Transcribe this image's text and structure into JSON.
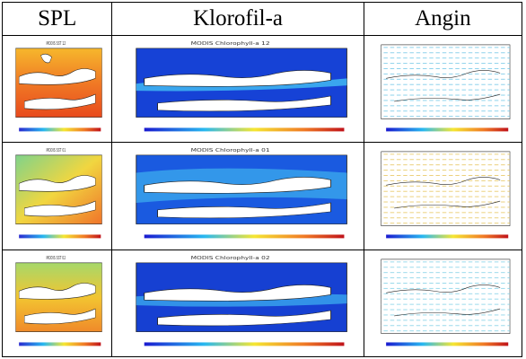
{
  "table": {
    "columns": [
      "SPL",
      "Klorofil-a",
      "Angin"
    ],
    "rows": [
      {
        "spl_title": "MODIS SST 12",
        "chl_title": "MODIS Chlorophyll-a 12"
      },
      {
        "spl_title": "MODIS SST 01",
        "chl_title": "MODIS Chlorophyll-a 01"
      },
      {
        "spl_title": "MODIS SST 02",
        "chl_title": "MODIS Chlorophyll-a 02"
      }
    ]
  },
  "colors": {
    "sst_warm": "#e8491e",
    "sst_mid": "#f2c531",
    "sst_cool": "#2fa0e8",
    "chl_low": "#1338c8",
    "chl_mid": "#31b8f0",
    "land": "#ffffff",
    "wind_vector": "#7fd0e6"
  }
}
